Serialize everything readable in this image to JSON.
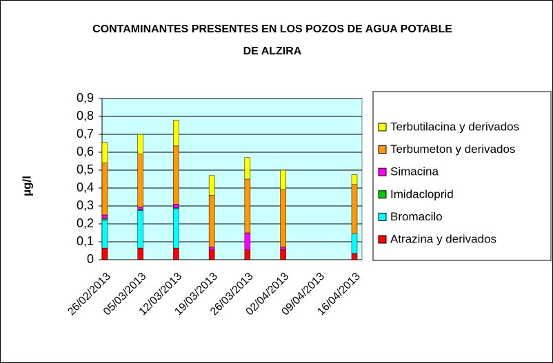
{
  "chart_data": {
    "type": "stacked_bar",
    "title": [
      "CONTAMINANTES PRESENTES EN LOS POZOS DE AGUA POTABLE",
      "DE ALZIRA"
    ],
    "y_label": "µg/l",
    "categories": [
      "26/02/2013",
      "05/03/2013",
      "12/03/2013",
      "19/03/2013",
      "26/03/2013",
      "02/04/2013",
      "09/04/2013",
      "16/04/2013"
    ],
    "series": [
      {
        "name": "Atrazina y derivados",
        "color": "#ff0000",
        "values": [
          0.065,
          0.065,
          0.065,
          0.055,
          0.055,
          0.055,
          null,
          0.035
        ]
      },
      {
        "name": "Bromacilo",
        "color": "#00ffff",
        "values": [
          0.155,
          0.21,
          0.22,
          0,
          0,
          0,
          null,
          0.11
        ]
      },
      {
        "name": "Imidacloprid",
        "color": "#00cc00",
        "values": [
          0.01,
          0.005,
          0.005,
          0,
          0,
          0,
          null,
          0
        ]
      },
      {
        "name": "Simacina",
        "color": "#ff00ff",
        "values": [
          0.02,
          0.015,
          0.02,
          0.015,
          0.095,
          0.015,
          null,
          0
        ]
      },
      {
        "name": "Terbumeton y derivados",
        "color": "#ff9900",
        "values": [
          0.29,
          0.295,
          0.325,
          0.29,
          0.3,
          0.32,
          null,
          0.275
        ]
      },
      {
        "name": "Terbutilacina y derivados",
        "color": "#ffff00",
        "values": [
          0.115,
          0.11,
          0.145,
          0.11,
          0.12,
          0.11,
          null,
          0.055
        ]
      }
    ],
    "ylim": [
      0,
      0.9
    ],
    "yticks": [
      0,
      {
        "value": 0.1,
        "label": "0,1"
      },
      {
        "value": 0.2,
        "label": "0,2"
      },
      {
        "value": 0.3,
        "label": "0,3"
      },
      {
        "value": 0.4,
        "label": "0,4"
      },
      {
        "value": 0.5,
        "label": "0,5"
      },
      {
        "value": 0.6,
        "label": "0,6"
      },
      {
        "value": 0.7,
        "label": "0,7"
      },
      {
        "value": 0.8,
        "label": "0,8"
      },
      {
        "value": 0.9,
        "label": "0,9"
      }
    ],
    "grid": true,
    "legend": "right",
    "plot_background": "#ccffff"
  }
}
